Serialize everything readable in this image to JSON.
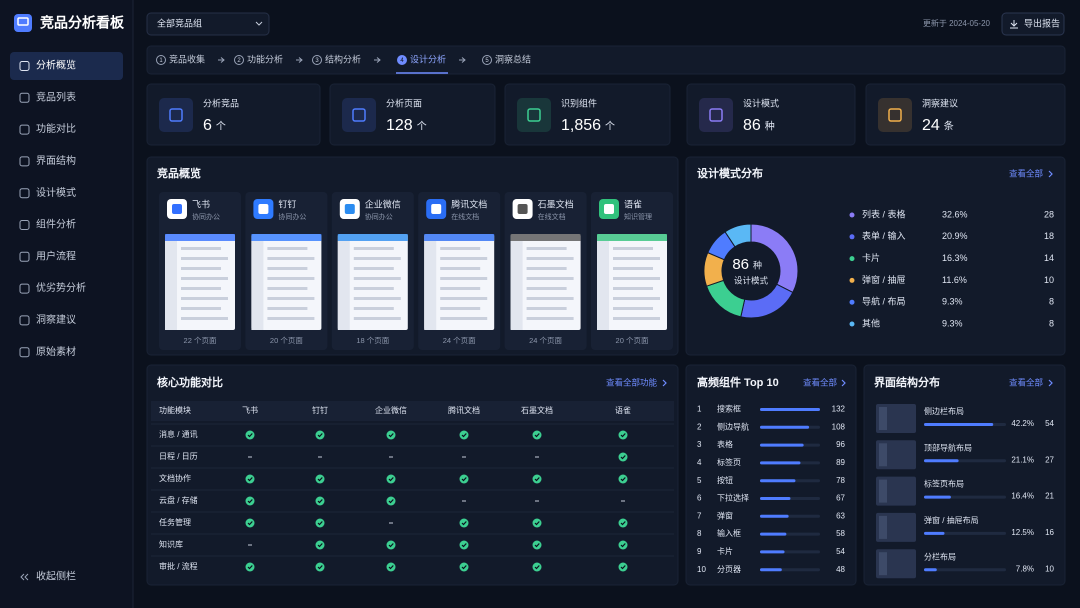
{
  "sidebar": {
    "title": "竞品分析看板",
    "nav": [
      "分析概览",
      "竞品列表",
      "功能对比",
      "界面结构",
      "设计模式",
      "组件分析",
      "用户流程",
      "优劣势分析",
      "洞察建议",
      "原始素材"
    ],
    "active": 0,
    "collapse": "收起侧栏"
  },
  "header": {
    "group_select": "全部竞品组",
    "updated": "更新于 2024-05-20",
    "export": "导出报告"
  },
  "steps": {
    "items": [
      {
        "num": "1",
        "label": "竞品收集"
      },
      {
        "num": "2",
        "label": "功能分析"
      },
      {
        "num": "3",
        "label": "结构分析"
      },
      {
        "num": "4",
        "label": "设计分析"
      },
      {
        "num": "5",
        "label": "洞察总结"
      }
    ],
    "active": 3
  },
  "stats": [
    {
      "label": "分析竞品",
      "value": "6",
      "unit": "个",
      "color": "#4f7cff"
    },
    {
      "label": "分析页面",
      "value": "128",
      "unit": "个",
      "color": "#4f7cff"
    },
    {
      "label": "识别组件",
      "value": "1,856",
      "unit": "个",
      "color": "#3ccf91"
    },
    {
      "label": "设计模式",
      "value": "86",
      "unit": "种",
      "color": "#8b7cf6"
    },
    {
      "label": "洞察建议",
      "value": "24",
      "unit": "条",
      "color": "#f2b04c"
    }
  ],
  "competitors": {
    "title": "竞品概览",
    "items": [
      {
        "name": "飞书",
        "category": "协同办公",
        "pages": "22 个页面",
        "color": "#3370ff"
      },
      {
        "name": "钉钉",
        "category": "协同办公",
        "pages": "20 个页面",
        "color": "#2f7bff"
      },
      {
        "name": "企业微信",
        "category": "协同办公",
        "pages": "18 个页面",
        "color": "#2b8cf0"
      },
      {
        "name": "腾讯文档",
        "category": "在线文档",
        "pages": "24 个页面",
        "color": "#2a6df4"
      },
      {
        "name": "石墨文档",
        "category": "在线文档",
        "pages": "24 个页面",
        "color": "#555555"
      },
      {
        "name": "语雀",
        "category": "知识管理",
        "pages": "20 个页面",
        "color": "#31c27c"
      }
    ]
  },
  "pattern_distribution": {
    "title": "设计模式分布",
    "link": "查看全部",
    "total": "86",
    "total_unit": "种",
    "total_label": "设计模式",
    "items": [
      {
        "name": "列表 / 表格",
        "percent": {
          "value": 32.6,
          "label": "32.6%"
        },
        "count": 28,
        "color": "#8b7cf6"
      },
      {
        "name": "表单 / 输入",
        "percent": {
          "value": 20.9,
          "label": "20.9%"
        },
        "count": 18,
        "color": "#5b6cf6"
      },
      {
        "name": "卡片",
        "percent": {
          "value": 16.3,
          "label": "16.3%"
        },
        "count": 14,
        "color": "#3ccf91"
      },
      {
        "name": "弹窗 / 抽屉",
        "percent": {
          "value": 11.6,
          "label": "11.6%"
        },
        "count": 10,
        "color": "#f2b04c"
      },
      {
        "name": "导航 / 布局",
        "percent": {
          "value": 9.3,
          "label": "9.3%"
        },
        "count": 8,
        "color": "#4f7cff"
      },
      {
        "name": "其他",
        "percent": {
          "value": 9.3,
          "label": "9.3%"
        },
        "count": 8,
        "color": "#5ab8f5"
      }
    ]
  },
  "feature_table": {
    "title": "核心功能对比",
    "link": "查看全部功能",
    "columns": [
      "功能模块",
      "飞书",
      "钉钉",
      "企业微信",
      "腾讯文档",
      "石墨文档",
      "语雀"
    ],
    "rows": [
      {
        "name": "消息 / 通讯",
        "support": [
          true,
          true,
          true,
          true,
          true,
          true
        ]
      },
      {
        "name": "日程 / 日历",
        "support": [
          false,
          false,
          false,
          false,
          false,
          true
        ]
      },
      {
        "name": "文档协作",
        "support": [
          true,
          true,
          true,
          true,
          true,
          true
        ]
      },
      {
        "name": "云盘 / 存储",
        "support": [
          true,
          true,
          true,
          false,
          false,
          false
        ]
      },
      {
        "name": "任务管理",
        "support": [
          true,
          true,
          false,
          true,
          true,
          true
        ]
      },
      {
        "name": "知识库",
        "support": [
          false,
          true,
          true,
          true,
          true,
          true
        ]
      },
      {
        "name": "审批 / 流程",
        "support": [
          true,
          true,
          true,
          true,
          true,
          true
        ]
      }
    ]
  },
  "top_components": {
    "title": "高频组件 Top 10",
    "link": "查看全部",
    "items": [
      {
        "rank": 1,
        "name": "搜索框",
        "count": 132
      },
      {
        "rank": 2,
        "name": "侧边导航",
        "count": 108
      },
      {
        "rank": 3,
        "name": "表格",
        "count": 96
      },
      {
        "rank": 4,
        "name": "标签页",
        "count": 89
      },
      {
        "rank": 5,
        "name": "按钮",
        "count": 78
      },
      {
        "rank": 6,
        "name": "下拉选择",
        "count": 67
      },
      {
        "rank": 7,
        "name": "弹窗",
        "count": 63
      },
      {
        "rank": 8,
        "name": "输入框",
        "count": 58
      },
      {
        "rank": 9,
        "name": "卡片",
        "count": 54
      },
      {
        "rank": 10,
        "name": "分页器",
        "count": 48
      }
    ]
  },
  "structure_distribution": {
    "title": "界面结构分布",
    "link": "查看全部",
    "items": [
      {
        "name": "侧边栏布局",
        "percent": {
          "value": 42.2,
          "label": "42.2%"
        },
        "count": 54
      },
      {
        "name": "顶部导航布局",
        "percent": {
          "value": 21.1,
          "label": "21.1%"
        },
        "count": 27
      },
      {
        "name": "标签页布局",
        "percent": {
          "value": 16.4,
          "label": "16.4%"
        },
        "count": 21
      },
      {
        "name": "弹窗 / 抽屉布局",
        "percent": {
          "value": 12.5,
          "label": "12.5%"
        },
        "count": 16
      },
      {
        "name": "分栏布局",
        "percent": {
          "value": 7.8,
          "label": "7.8%"
        },
        "count": 10
      }
    ]
  }
}
